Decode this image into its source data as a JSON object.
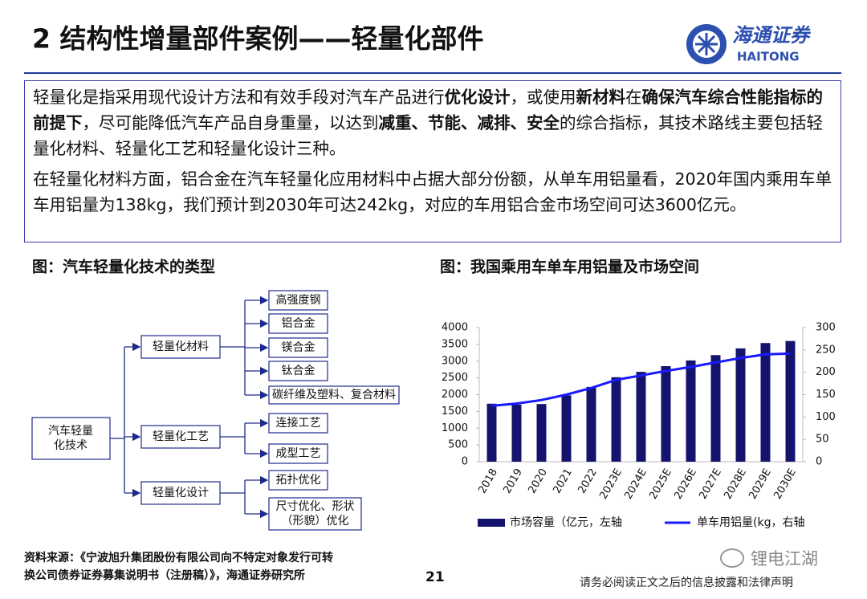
{
  "header": {
    "title": "2 结构性增量部件案例——轻量化部件",
    "logo_cn": "海通证券",
    "logo_en": "HAITONG"
  },
  "intro": {
    "paragraphs": [
      [
        {
          "text": "轻量化是指采用现代设计方法和有效手段对汽车产品进行",
          "bold": false
        },
        {
          "text": "优化设计",
          "bold": true
        },
        {
          "text": "，或使用",
          "bold": false
        },
        {
          "text": "新材料",
          "bold": true
        },
        {
          "text": "在",
          "bold": false
        },
        {
          "text": "确保汽车综合性能指标的前提下",
          "bold": true
        },
        {
          "text": "，尽可能降低汽车产品自身重量，以达到",
          "bold": false
        },
        {
          "text": "减重、节能、减排、安全",
          "bold": true
        },
        {
          "text": "的综合指标，其技术路线主要包括轻量化材料、轻量化工艺和轻量化设计三种。",
          "bold": false
        }
      ],
      [
        {
          "text": "在轻量化材料方面，铝合金在汽车轻量化应用材料中占据大部分份额，从单车用铝量看，2020年国内乘用车单车用铝量为138kg，我们预计到2030年可达242kg，对应的车用铝合金市场空间可达3600亿元。",
          "bold": false
        }
      ]
    ]
  },
  "diagram": {
    "title": "图：汽车轻量化技术的类型",
    "root": [
      "汽车轻量",
      "化技术"
    ],
    "branches": [
      {
        "label": "轻量化材料",
        "children": [
          [
            "高强度钢"
          ],
          [
            "铝合金"
          ],
          [
            "镁合金"
          ],
          [
            "钛合金"
          ],
          [
            "碳纤维及塑料、复合材料"
          ]
        ]
      },
      {
        "label": "轻量化工艺",
        "children": [
          [
            "连接工艺"
          ],
          [
            "成型工艺"
          ]
        ]
      },
      {
        "label": "轻量化设计",
        "children": [
          [
            "拓扑优化"
          ],
          [
            "尺寸优化、形状",
            "（形貌）优化"
          ]
        ]
      }
    ]
  },
  "chart_data": {
    "type": "bar-line",
    "title": "图：我国乘用车单车用铝量及市场空间",
    "categories": [
      "2018",
      "2019",
      "2020",
      "2021",
      "2022",
      "2023E",
      "2024E",
      "2025E",
      "2026E",
      "2027E",
      "2028E",
      "2029E",
      "2030E"
    ],
    "series": [
      {
        "name": "市场容量（亿元，左轴",
        "type": "bar",
        "color": "#14146e",
        "values": [
          1730,
          1700,
          1720,
          1980,
          2230,
          2520,
          2680,
          2850,
          3020,
          3180,
          3380,
          3540,
          3600
        ]
      },
      {
        "name": "单车用铝量(kg，右轴",
        "type": "line",
        "axis": "y2",
        "color": "#1a1aff",
        "values": [
          125,
          130,
          138,
          150,
          165,
          183,
          193,
          203,
          212,
          222,
          232,
          240,
          242
        ]
      }
    ],
    "ylim": [
      0,
      4000
    ],
    "yticks": [
      0,
      500,
      1000,
      1500,
      2000,
      2500,
      3000,
      3500,
      4000
    ],
    "y2lim": [
      0,
      300
    ],
    "y2ticks": [
      0,
      50,
      100,
      150,
      200,
      250,
      300
    ],
    "grid": false,
    "legend": "bottom"
  },
  "footer": {
    "source": [
      "资料来源：《宁波旭升集团股份有限公司向不特定对象发行可转",
      "换公司债券证券募集说明书（注册稿）》，海通证券研究所"
    ],
    "page": "21",
    "disclaimer": "请务必阅读正文之后的信息披露和法律声明",
    "watermark": "锂电江湖"
  }
}
